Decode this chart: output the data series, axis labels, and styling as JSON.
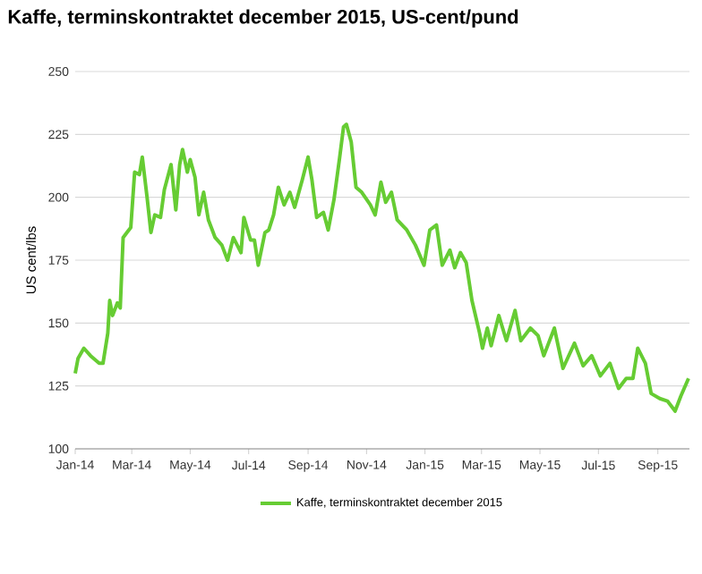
{
  "chart_data": {
    "type": "line",
    "title": "Kaffe, terminskontraktet december 2015, US-cent/pund",
    "ylabel": "US cent/lbs",
    "x": [
      "2014-01-01",
      "2014-01-04",
      "2014-01-10",
      "2014-01-17",
      "2014-01-26",
      "2014-01-30",
      "2014-02-04",
      "2014-02-06",
      "2014-02-09",
      "2014-02-14",
      "2014-02-17",
      "2014-02-20",
      "2014-02-24",
      "2014-02-28",
      "2014-03-04",
      "2014-03-09",
      "2014-03-12",
      "2014-03-17",
      "2014-03-21",
      "2014-03-25",
      "2014-03-31",
      "2014-04-04",
      "2014-04-11",
      "2014-04-16",
      "2014-04-20",
      "2014-04-23",
      "2014-04-28",
      "2014-05-01",
      "2014-05-06",
      "2014-05-10",
      "2014-05-15",
      "2014-05-20",
      "2014-05-27",
      "2014-06-03",
      "2014-06-09",
      "2014-06-15",
      "2014-06-23",
      "2014-06-26",
      "2014-07-03",
      "2014-07-07",
      "2014-07-11",
      "2014-07-18",
      "2014-07-22",
      "2014-07-27",
      "2014-08-01",
      "2014-08-07",
      "2014-08-13",
      "2014-08-18",
      "2014-08-26",
      "2014-09-01",
      "2014-09-05",
      "2014-09-10",
      "2014-09-17",
      "2014-09-22",
      "2014-09-28",
      "2014-10-04",
      "2014-10-08",
      "2014-10-11",
      "2014-10-16",
      "2014-10-21",
      "2014-10-27",
      "2014-11-05",
      "2014-11-10",
      "2014-11-16",
      "2014-11-21",
      "2014-11-27",
      "2014-12-03",
      "2014-12-13",
      "2014-12-22",
      "2014-12-31",
      "2015-01-06",
      "2015-01-13",
      "2015-01-19",
      "2015-01-27",
      "2015-02-01",
      "2015-02-07",
      "2015-02-13",
      "2015-02-19",
      "2015-02-27",
      "2015-03-02",
      "2015-03-07",
      "2015-03-11",
      "2015-03-19",
      "2015-03-27",
      "2015-04-05",
      "2015-04-11",
      "2015-04-21",
      "2015-04-29",
      "2015-05-05",
      "2015-05-16",
      "2015-05-25",
      "2015-06-06",
      "2015-06-15",
      "2015-06-24",
      "2015-07-03",
      "2015-07-13",
      "2015-07-22",
      "2015-07-30",
      "2015-08-06",
      "2015-08-11",
      "2015-08-19",
      "2015-08-25",
      "2015-09-03",
      "2015-09-11",
      "2015-09-19",
      "2015-09-25",
      "2015-10-03"
    ],
    "series": [
      {
        "name": "Kaffe, terminskontraktet december 2015",
        "color": "#66cc33",
        "values": [
          130,
          136,
          140,
          137,
          134,
          134,
          146,
          159,
          153,
          158,
          156,
          184,
          186,
          188,
          210,
          209,
          216,
          200,
          186,
          193,
          192,
          203,
          213,
          195,
          213,
          219,
          210,
          215,
          208,
          193,
          202,
          191,
          184,
          181,
          175,
          184,
          178,
          192,
          183,
          183,
          173,
          186,
          187,
          193,
          204,
          197,
          202,
          196,
          207,
          216,
          207,
          192,
          194,
          187,
          199,
          216,
          228,
          229,
          222,
          204,
          202,
          197,
          193,
          206,
          198,
          202,
          191,
          187,
          181,
          173,
          187,
          189,
          173,
          179,
          172,
          178,
          174,
          159,
          146,
          140,
          148,
          141,
          153,
          143,
          155,
          143,
          148,
          145,
          137,
          148,
          132,
          142,
          133,
          137,
          129,
          134,
          124,
          128,
          128,
          140,
          134,
          122,
          120,
          119,
          115,
          121,
          128
        ]
      }
    ],
    "xlim": [
      "2014-01-01",
      "2015-10-04"
    ],
    "xticks": [
      {
        "value": "2014-01-01",
        "label": "Jan-14"
      },
      {
        "value": "2014-03-01",
        "label": "Mar-14"
      },
      {
        "value": "2014-05-01",
        "label": "May-14"
      },
      {
        "value": "2014-07-01",
        "label": "Jul-14"
      },
      {
        "value": "2014-09-01",
        "label": "Sep-14"
      },
      {
        "value": "2014-11-01",
        "label": "Nov-14"
      },
      {
        "value": "2015-01-01",
        "label": "Jan-15"
      },
      {
        "value": "2015-03-01",
        "label": "Mar-15"
      },
      {
        "value": "2015-05-01",
        "label": "May-15"
      },
      {
        "value": "2015-07-01",
        "label": "Jul-15"
      },
      {
        "value": "2015-09-01",
        "label": "Sep-15"
      }
    ],
    "ylim": [
      100,
      250
    ],
    "yticks": [
      100,
      125,
      150,
      175,
      200,
      225,
      250
    ],
    "grid": "y",
    "legend": "bottom",
    "marker": "none",
    "line_style": "solid"
  }
}
